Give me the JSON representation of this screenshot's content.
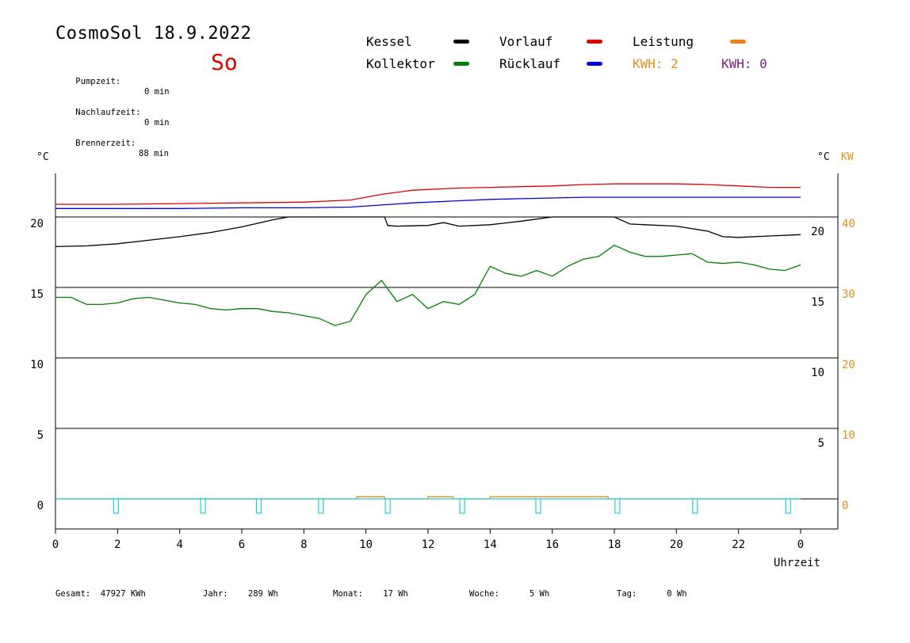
{
  "header": {
    "title": "CosmoSol 18.9.2022",
    "day": "So",
    "info": [
      {
        "label": "Pumpzeit:",
        "value": "0 min"
      },
      {
        "label": "Nachlaufzeit:",
        "value": "0 min"
      },
      {
        "label": "Brennerzeit:",
        "value": "88 min"
      }
    ]
  },
  "legend": [
    {
      "name": "Kessel",
      "color": "#000000"
    },
    {
      "name": "Vorlauf",
      "color": "#e00000"
    },
    {
      "name": "Leistung",
      "color": "#f08010"
    },
    {
      "name": "Kollektor",
      "color": "#008000"
    },
    {
      "name": "Rücklauf",
      "color": "#0000e0"
    }
  ],
  "kwh": [
    {
      "label": "KWH: 2",
      "color": "#e09020"
    },
    {
      "label": "KWH: 0",
      "color": "#802080"
    }
  ],
  "summary": [
    {
      "label": "Gesamt:",
      "value": "47927 KWh"
    },
    {
      "label": "Jahr:",
      "value": "289 Wh"
    },
    {
      "label": "Monat:",
      "value": "17 Wh"
    },
    {
      "label": "Woche:",
      "value": "5 Wh"
    },
    {
      "label": "Tag:",
      "value": "0 Wh"
    }
  ],
  "chart_data": {
    "type": "line",
    "xlabel": "Uhrzeit",
    "left_unit": "°C",
    "right_unit_c": "°C",
    "right_unit_kw": "KW",
    "xlim": [
      0,
      24
    ],
    "ylim": [
      -2,
      23.5
    ],
    "x_ticks": [
      "0",
      "2",
      "4",
      "6",
      "8",
      "10",
      "12",
      "14",
      "16",
      "18",
      "20",
      "22",
      "0"
    ],
    "y_ticks_left": [
      "0",
      "5",
      "10",
      "15",
      "20"
    ],
    "y_ticks_right_c": [
      "5",
      "10",
      "15",
      "20"
    ],
    "y_ticks_right_kw": [
      "0",
      "10",
      "20",
      "30",
      "40"
    ],
    "grid_y": [
      0,
      5,
      10,
      15,
      20
    ],
    "series": [
      {
        "name": "Vorlauf",
        "color": "#e00000",
        "x": [
          0,
          2,
          4,
          6,
          8,
          9.5,
          10.5,
          11.5,
          13,
          14,
          15,
          16,
          17,
          18,
          19,
          20,
          21,
          22,
          23,
          24
        ],
        "y": [
          20.9,
          20.9,
          20.95,
          21.0,
          21.05,
          21.2,
          21.6,
          21.9,
          22.05,
          22.1,
          22.15,
          22.2,
          22.3,
          22.35,
          22.35,
          22.35,
          22.3,
          22.2,
          22.1,
          22.1
        ]
      },
      {
        "name": "Rücklauf",
        "color": "#0000e0",
        "x": [
          0,
          2,
          4,
          6,
          8,
          9.5,
          10.5,
          11.5,
          13,
          14,
          15,
          16,
          17,
          18,
          19,
          20,
          21,
          22,
          23,
          24
        ],
        "y": [
          20.6,
          20.6,
          20.6,
          20.65,
          20.65,
          20.7,
          20.85,
          21.0,
          21.15,
          21.25,
          21.3,
          21.35,
          21.4,
          21.4,
          21.4,
          21.4,
          21.4,
          21.4,
          21.4,
          21.4
        ]
      },
      {
        "name": "Kessel",
        "color": "#000000",
        "x": [
          0,
          1,
          2,
          3,
          4,
          5,
          6,
          7,
          7.5,
          10.6,
          10.7,
          11,
          12,
          12.5,
          13,
          14,
          15,
          16,
          16.5,
          17.5,
          18,
          18.5,
          19,
          20,
          21,
          21.5,
          22,
          23,
          24
        ],
        "y": [
          17.9,
          17.95,
          18.1,
          18.35,
          18.6,
          18.9,
          19.3,
          19.8,
          20.0,
          20.0,
          19.4,
          19.35,
          19.4,
          19.6,
          19.35,
          19.45,
          19.7,
          20.0,
          20.0,
          20.0,
          20.0,
          19.5,
          19.45,
          19.35,
          19.0,
          18.6,
          18.55,
          18.65,
          18.75
        ]
      },
      {
        "name": "Kollektor",
        "color": "#008000",
        "x": [
          0,
          0.5,
          1,
          1.5,
          2,
          2.5,
          3,
          3.5,
          4,
          4.5,
          5,
          5.5,
          6,
          6.5,
          7,
          7.5,
          8,
          8.5,
          9,
          9.5,
          10,
          10.5,
          11,
          11.5,
          12,
          12.5,
          13,
          13.5,
          14,
          14.5,
          15,
          15.5,
          16,
          16.5,
          17,
          17.5,
          18,
          18.5,
          19,
          19.5,
          20,
          20.5,
          21,
          21.5,
          22,
          22.5,
          23,
          23.5,
          24
        ],
        "y": [
          14.3,
          14.3,
          13.8,
          13.8,
          13.9,
          14.2,
          14.3,
          14.1,
          13.9,
          13.8,
          13.5,
          13.4,
          13.5,
          13.5,
          13.3,
          13.2,
          13.0,
          12.8,
          12.3,
          12.6,
          14.5,
          15.5,
          14.0,
          14.5,
          13.5,
          14.0,
          13.8,
          14.5,
          16.5,
          16.0,
          15.8,
          16.2,
          15.8,
          16.5,
          17.0,
          17.2,
          18.0,
          17.5,
          17.2,
          17.2,
          17.3,
          17.4,
          16.8,
          16.7,
          16.8,
          16.6,
          16.3,
          16.2,
          16.6
        ]
      },
      {
        "name": "Leistung",
        "color": "#e09020",
        "x": [
          0,
          9.7,
          9.7,
          10.6,
          10.6,
          12.0,
          12.0,
          12.8,
          12.8,
          14.0,
          14.0,
          17.8,
          17.8,
          24
        ],
        "y": [
          0,
          0,
          0.15,
          0.15,
          0,
          0,
          0.15,
          0.15,
          0,
          0,
          0.15,
          0.15,
          0,
          0
        ]
      }
    ],
    "pump_events_x": [
      1.95,
      4.75,
      6.55,
      8.55,
      10.7,
      13.1,
      15.55,
      18.1,
      20.6,
      23.6
    ]
  }
}
